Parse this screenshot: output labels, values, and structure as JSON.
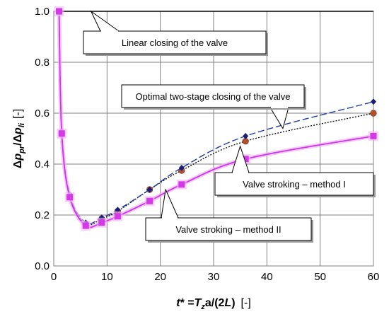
{
  "chart_data": {
    "type": "line",
    "xlabel_parts": [
      "t",
      "* =",
      "T",
      "z",
      "a/(2",
      "L",
      ")"
    ],
    "xlabel_unit": "[-]",
    "ylabel_parts": [
      "Δ",
      "p",
      "pr",
      "/Δ",
      "p",
      "li"
    ],
    "ylabel_unit": "[-]",
    "xlim": [
      0,
      60
    ],
    "ylim": [
      0,
      1.0
    ],
    "x_ticks": [
      0,
      10,
      20,
      30,
      40,
      50,
      60
    ],
    "y_ticks": [
      0.0,
      0.2,
      0.4,
      0.6,
      0.8,
      1.0
    ],
    "x_tick_labels": [
      "0",
      "10",
      "20",
      "30",
      "40",
      "50",
      "60"
    ],
    "y_tick_labels": [
      "0.0",
      "0.2",
      "0.4",
      "0.6",
      "0.8",
      "1.0"
    ],
    "grid": true,
    "series": [
      {
        "label_ref": "Linear closing of the valve",
        "color": "#000000",
        "style": "solid",
        "marker": "none",
        "x": [
          1,
          60
        ],
        "y": [
          1.0,
          1.0
        ]
      },
      {
        "label_ref": "Optimal two-stage closing of the valve",
        "color": "#1f3ba8",
        "style": "dashed",
        "marker": "diamond",
        "x": [
          1,
          1.5,
          3,
          6,
          9,
          12,
          18,
          24,
          36,
          60
        ],
        "y": [
          1.0,
          0.53,
          0.28,
          0.17,
          0.19,
          0.22,
          0.3,
          0.385,
          0.51,
          0.645
        ]
      },
      {
        "label_ref": "Valve stroking – method I",
        "color": "#000000",
        "style": "dotted",
        "marker": "circle",
        "marker_color": "#b5512a",
        "x": [
          1,
          1.5,
          3,
          6,
          9,
          12,
          18,
          24,
          36,
          60
        ],
        "y": [
          1.0,
          0.52,
          0.275,
          0.165,
          0.185,
          0.215,
          0.3,
          0.375,
          0.49,
          0.6
        ]
      },
      {
        "label_ref": "Valve stroking – method II",
        "color": "#cc33ee",
        "style": "solid",
        "marker": "square",
        "x": [
          1,
          1.5,
          3,
          6,
          9,
          12,
          18,
          24,
          36,
          60
        ],
        "y": [
          1.0,
          0.52,
          0.27,
          0.158,
          0.17,
          0.195,
          0.255,
          0.32,
          0.42,
          0.51
        ]
      }
    ],
    "annotations": [
      {
        "text": "Linear closing of the valve",
        "points_to": [
          7,
          1.0
        ]
      },
      {
        "text": "Optimal two-stage closing of the valve",
        "points_to": [
          43,
          0.54
        ]
      },
      {
        "text": "Valve stroking – method I",
        "points_to": [
          35,
          0.47
        ]
      },
      {
        "text": "Valve stroking – method II",
        "points_to": [
          21,
          0.3
        ]
      }
    ]
  }
}
